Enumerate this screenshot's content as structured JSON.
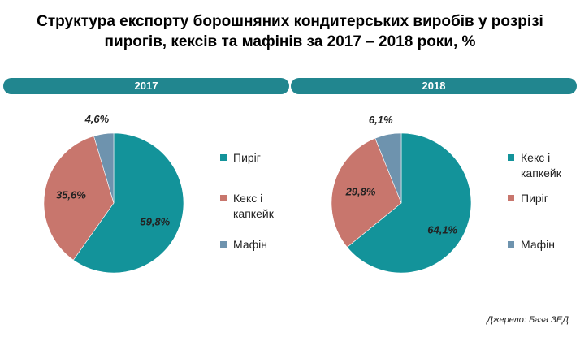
{
  "title_line1": "Структура експорту борошняних кондитерських виробів у розрізі",
  "title_line2": "пирогів, кексів та мафінів за 2017 – 2018 роки, %",
  "source": "Джерело: База ЗЕД",
  "colors": {
    "band": "#21868f",
    "teal": "#13939a",
    "rose": "#c8766d",
    "blue": "#6e93ae"
  },
  "chart_data": [
    {
      "type": "pie",
      "title": "2017",
      "slices": [
        {
          "label": "Пиріг",
          "value": 59.8,
          "display": "59,8%",
          "color": "#13939a"
        },
        {
          "label": "Кекс і капкейк",
          "value": 35.6,
          "display": "35,6%",
          "color": "#c8766d"
        },
        {
          "label": "Мафін",
          "value": 4.6,
          "display": "4,6%",
          "color": "#6e93ae"
        }
      ],
      "legend_position": "right"
    },
    {
      "type": "pie",
      "title": "2018",
      "slices": [
        {
          "label": "Кекс і капкейк",
          "value": 64.1,
          "display": "64,1%",
          "color": "#13939a"
        },
        {
          "label": "Пиріг",
          "value": 29.8,
          "display": "29,8%",
          "color": "#c8766d"
        },
        {
          "label": "Мафін",
          "value": 6.1,
          "display": "6,1%",
          "color": "#6e93ae"
        }
      ],
      "legend_position": "right"
    }
  ]
}
